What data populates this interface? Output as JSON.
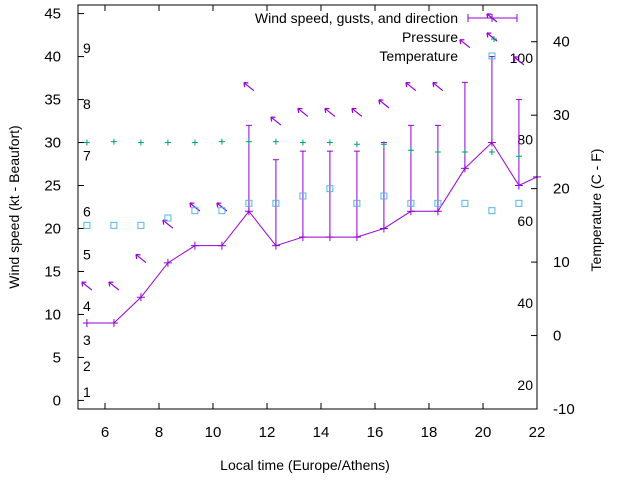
{
  "chart_data": {
    "type": "line",
    "title": "",
    "xlabel": "Local time (Europe/Athens)",
    "ylabel": "Wind speed (kt - Beaufort)",
    "y2label": "Temperature (C - F)",
    "xlim": [
      5,
      22
    ],
    "ylim": [
      -1,
      46
    ],
    "y2lim": [
      -10,
      45
    ],
    "xticks": [
      "6",
      "8",
      "10",
      "12",
      "14",
      "16",
      "18",
      "20",
      "22"
    ],
    "yticks": [
      "0",
      "5",
      "10",
      "15",
      "20",
      "25",
      "30",
      "35",
      "40",
      "45"
    ],
    "y2ticks": [
      "-10",
      "0",
      "10",
      "20",
      "30",
      "40"
    ],
    "beaufort_labels": [
      {
        "label": "1",
        "y": 1
      },
      {
        "label": "2",
        "y": 4
      },
      {
        "label": "3",
        "y": 7
      },
      {
        "label": "4",
        "y": 11
      },
      {
        "label": "5",
        "y": 17
      },
      {
        "label": "6",
        "y": 22
      },
      {
        "label": "7",
        "y": 28.5
      },
      {
        "label": "8",
        "y": 34.5
      },
      {
        "label": "9",
        "y": 41
      }
    ],
    "fahrenheit_labels": [
      {
        "label": "20",
        "y2": -6.7
      },
      {
        "label": "40",
        "y2": 4.4
      },
      {
        "label": "60",
        "y2": 15.6
      },
      {
        "label": "80",
        "y2": 26.7
      },
      {
        "label": "100",
        "y2": 37.8
      }
    ],
    "legend": {
      "position": "top-right",
      "entries": [
        "Wind speed, gusts, and direction",
        "Pressure",
        "Temperature"
      ]
    },
    "series": [
      {
        "name": "Wind speed, gusts, and direction",
        "color": "#9400d3",
        "x": [
          5.33,
          6.33,
          7.33,
          8.33,
          9.33,
          10.33,
          11.33,
          12.33,
          13.33,
          14.33,
          15.33,
          16.33,
          17.33,
          18.33,
          19.33,
          20.33,
          21.33,
          22
        ],
        "y": [
          9,
          9,
          12,
          16,
          18,
          18,
          22,
          18,
          19,
          19,
          19,
          20,
          22,
          22,
          27,
          30,
          25,
          26
        ],
        "gust": [
          9,
          9,
          12,
          16,
          18,
          18,
          32,
          28,
          29,
          29,
          29,
          30,
          32,
          32,
          37,
          40,
          35,
          26
        ],
        "direction_arrows": [
          {
            "x": 5.33,
            "y": 13.3
          },
          {
            "x": 6.33,
            "y": 13.3
          },
          {
            "x": 7.33,
            "y": 16.5
          },
          {
            "x": 8.33,
            "y": 20.5
          },
          {
            "x": 9.33,
            "y": 22.5
          },
          {
            "x": 10.33,
            "y": 22.5
          },
          {
            "x": 11.33,
            "y": 36.5
          },
          {
            "x": 12.33,
            "y": 32.5
          },
          {
            "x": 13.33,
            "y": 33.5
          },
          {
            "x": 14.33,
            "y": 33.5
          },
          {
            "x": 15.33,
            "y": 33.5
          },
          {
            "x": 16.33,
            "y": 34.5
          },
          {
            "x": 17.33,
            "y": 36.5
          },
          {
            "x": 18.33,
            "y": 36.5
          },
          {
            "x": 19.33,
            "y": 41.5
          },
          {
            "x": 20.33,
            "y": 44.5
          },
          {
            "x": 21.33,
            "y": 39.5
          }
        ]
      },
      {
        "name": "Pressure",
        "color": "#009e73",
        "x": [
          5.33,
          6.33,
          7.33,
          8.33,
          9.33,
          10.33,
          11.33,
          12.33,
          13.33,
          14.33,
          15.33,
          16.33,
          17.33,
          18.33,
          19.33,
          20.33,
          21.33
        ],
        "y": [
          30,
          30.1,
          30,
          30,
          30,
          30.1,
          30.1,
          30.1,
          30,
          30,
          29.8,
          29.8,
          29.1,
          28.9,
          28.9,
          28.9,
          28.4
        ]
      },
      {
        "name": "Temperature",
        "color": "#56b4e9",
        "x": [
          5.33,
          6.33,
          7.33,
          8.33,
          9.33,
          10.33,
          11.33,
          12.33,
          13.33,
          14.33,
          15.33,
          16.33,
          17.33,
          18.33,
          19.33,
          20.33,
          21.33
        ],
        "y2": [
          15,
          15,
          15,
          16,
          17,
          17,
          18,
          18,
          19,
          20,
          18,
          19,
          18,
          18,
          18,
          17,
          18
        ]
      }
    ]
  }
}
